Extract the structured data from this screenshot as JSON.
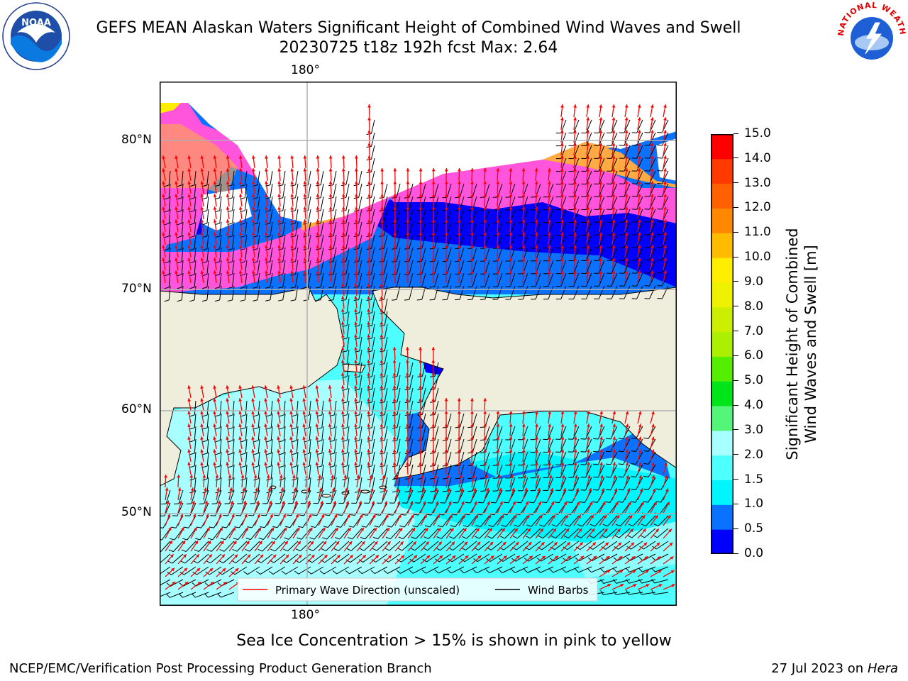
{
  "header": {
    "title_line1": "GEFS MEAN Alaskan Waters Significant Height of Combined Wind Waves and Swell",
    "title_line2": "20230725 t18z 192h fcst   Max: 2.64"
  },
  "logos": {
    "left": {
      "text": "NOAA",
      "ring_text": "NATIONAL OCEANIC AND ATMOSPHERIC ADMINISTRATION · U.S. DEPARTMENT OF COMMERCE"
    },
    "right": {
      "ring_text": "NATIONAL WEATHER SERVICE"
    }
  },
  "map": {
    "lon_labels": [
      "180°",
      "180°"
    ],
    "lat_labels": [
      "80°N",
      "70°N",
      "60°N",
      "50°N"
    ],
    "legend": {
      "wave_label": "Primary Wave Direction (unscaled)",
      "barb_label": "Wind Barbs"
    },
    "colors": {
      "land": "#efeddc",
      "ice_pink": "#ff55dd",
      "ice_orange": "#ffaa44",
      "ice_yellow": "#ffee00",
      "wave_arrow": "#ff0000",
      "barb": "#000000",
      "grid": "#b0b0b0"
    }
  },
  "colorbar": {
    "label_line1": "Significant Height of Combined",
    "label_line2": "Wind Waves and Swell [m]",
    "ticks": [
      "0.0",
      "0.5",
      "1.0",
      "1.5",
      "2.0",
      "3.0",
      "4.0",
      "5.0",
      "6.0",
      "7.0",
      "8.0",
      "9.0",
      "10.0",
      "11.0",
      "12.0",
      "13.0",
      "14.0",
      "15.0"
    ],
    "colors": [
      "#0000ff",
      "#0a72ff",
      "#00f5ff",
      "#4dffff",
      "#a8ffff",
      "#55f57a",
      "#00e51a",
      "#55ee00",
      "#aaf000",
      "#ccee00",
      "#eef200",
      "#ffee00",
      "#ffbb00",
      "#ff8800",
      "#ff6000",
      "#ff3a00",
      "#ff0000"
    ]
  },
  "notes": {
    "sea_ice": "Sea Ice Concentration > 15% is shown in pink to yellow"
  },
  "footer": {
    "left": "NCEP/EMC/Verification Post Processing Product Generation Branch",
    "right_date": "27 Jul 2023 on",
    "right_machine": "Hera"
  }
}
